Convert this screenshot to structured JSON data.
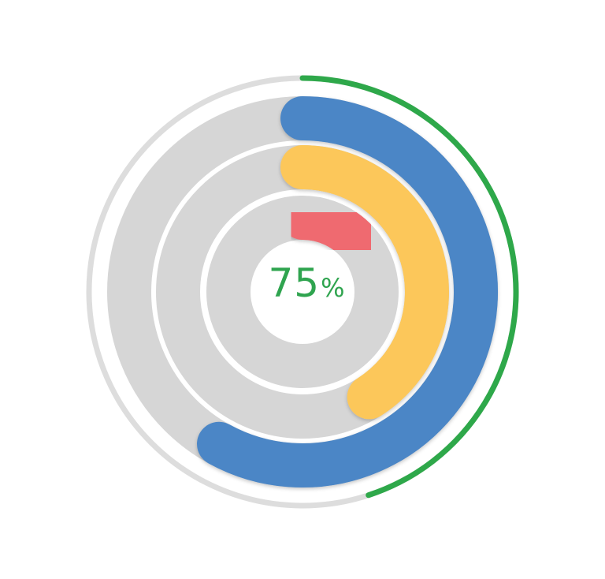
{
  "chart_data": {
    "type": "radial-bar",
    "center_label": {
      "value": "75",
      "unit": "%"
    },
    "outer_ring": {
      "value": 0.45,
      "color": "#2ea84a",
      "track_color": "#dddddd"
    },
    "series": [
      {
        "value": 0.58,
        "color": "#4c86c6"
      },
      {
        "value": 0.41,
        "color": "#fcc75a"
      },
      {
        "value": 0.14,
        "color": "#ef6b6f"
      }
    ],
    "track_color": "#d6d6d6",
    "grid": false,
    "legend": "none"
  }
}
